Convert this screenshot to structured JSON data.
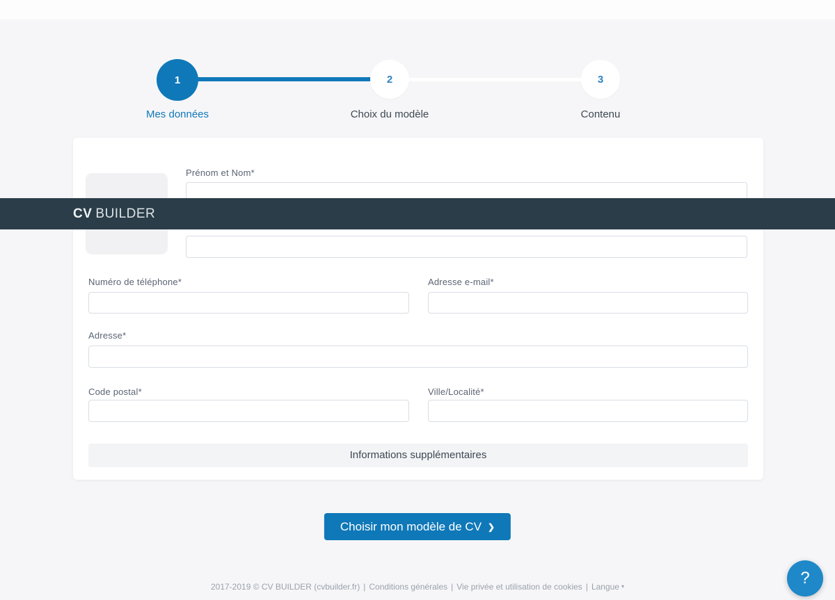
{
  "navbar": {
    "brand_primary": "CV",
    "brand_secondary": "BUILDER"
  },
  "stepper": {
    "steps": [
      {
        "number": "1",
        "label": "Mes données"
      },
      {
        "number": "2",
        "label": "Choix du modèle"
      },
      {
        "number": "3",
        "label": "Contenu"
      }
    ]
  },
  "form": {
    "name_label": "Prénom et Nom*",
    "phone_label": "Numéro de téléphone*",
    "email_label": "Adresse e-mail*",
    "address_label": "Adresse*",
    "postal_label": "Code postal*",
    "city_label": "Ville/Localité*",
    "extra_info_label": "Informations supplémentaires"
  },
  "cta": {
    "label": "Choisir mon modèle de CV",
    "chevron": "❯"
  },
  "footer": {
    "copyright": "2017-2019 © CV BUILDER (cvbuilder.fr)",
    "separator": "|",
    "links": [
      {
        "label": "Conditions générales"
      },
      {
        "label": "Vie privée et utilisation de cookies"
      },
      {
        "label": "Langue"
      }
    ],
    "caret": "▾"
  },
  "help": {
    "label": "?"
  },
  "colors": {
    "primary_blue": "#0f78b8",
    "navbar_dark": "#2a3d49",
    "help_blue": "#1e88c9",
    "page_background": "#f6f6f8"
  }
}
